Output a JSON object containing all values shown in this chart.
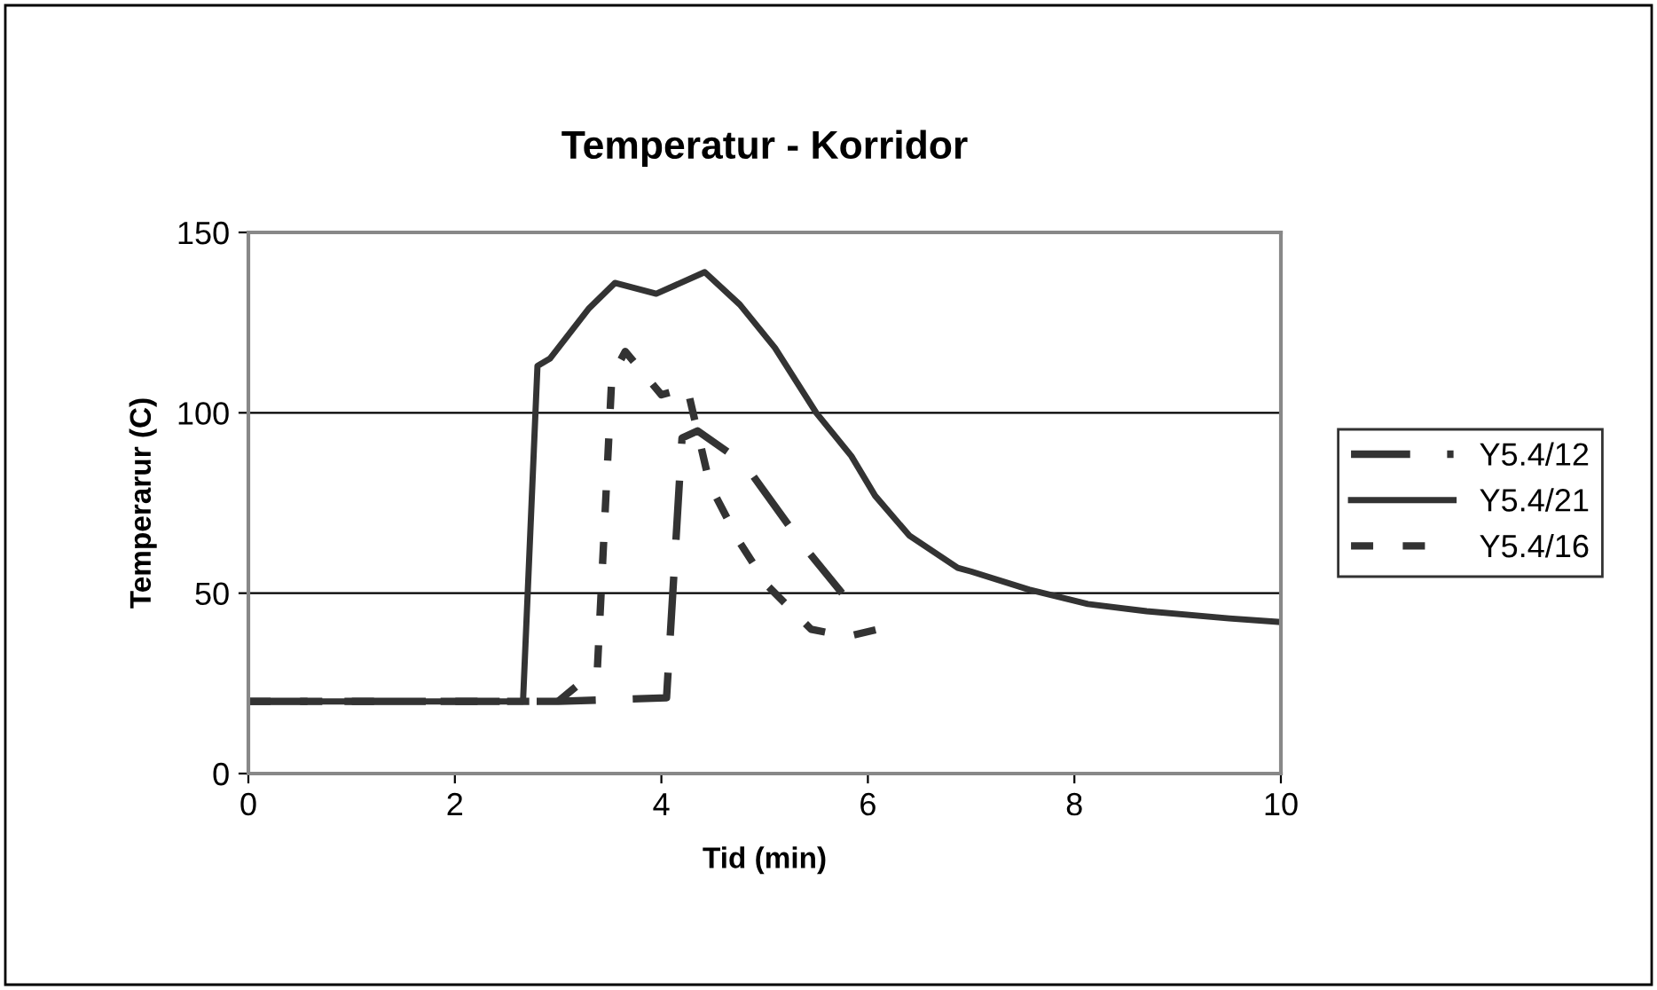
{
  "chart_data": {
    "type": "line",
    "title": "Temperatur - Korridor",
    "xlabel": "Tid (min)",
    "ylabel": "Temperarur (C)",
    "xlim": [
      0,
      10
    ],
    "xticks": [
      0,
      2,
      4,
      6,
      8,
      10
    ],
    "ylim": [
      0,
      150
    ],
    "yticks": [
      0,
      50,
      100,
      150
    ],
    "grid": "y",
    "legend": "right",
    "marker": "none",
    "series": [
      {
        "name": "Y5.4/12",
        "color": "#333333",
        "line_style": "dashed",
        "x": [
          0,
          1,
          2,
          3,
          4.05,
          4.2,
          4.35,
          4.8,
          5.38,
          5.75
        ],
        "values": [
          20,
          20,
          20,
          20,
          21,
          93,
          95,
          86,
          63,
          50
        ]
      },
      {
        "name": "Y5.4/21",
        "color": "#333333",
        "line_style": "solid",
        "x": [
          0,
          1,
          2,
          2.66,
          2.8,
          2.92,
          3.3,
          3.55,
          3.95,
          4.42,
          4.76,
          5.1,
          5.5,
          5.84,
          6.07,
          6.4,
          6.87,
          7.0,
          7.56,
          8.13,
          8.7,
          9.5,
          10
        ],
        "values": [
          20,
          20,
          20,
          20,
          113,
          115,
          129,
          136,
          133,
          139,
          130,
          118,
          100,
          88,
          77,
          66,
          57,
          56,
          51,
          47,
          45,
          43,
          42
        ]
      },
      {
        "name": "Y5.4/16",
        "color": "#333333",
        "line_style": "dotted",
        "x": [
          0,
          1,
          2,
          3,
          3.38,
          3.52,
          3.65,
          4.0,
          4.25,
          4.47,
          4.76,
          5.03,
          5.45,
          5.8,
          6.1
        ],
        "values": [
          20,
          20,
          20,
          20,
          29,
          110,
          117,
          105,
          107,
          80,
          64,
          52,
          40,
          38,
          40
        ]
      }
    ]
  }
}
